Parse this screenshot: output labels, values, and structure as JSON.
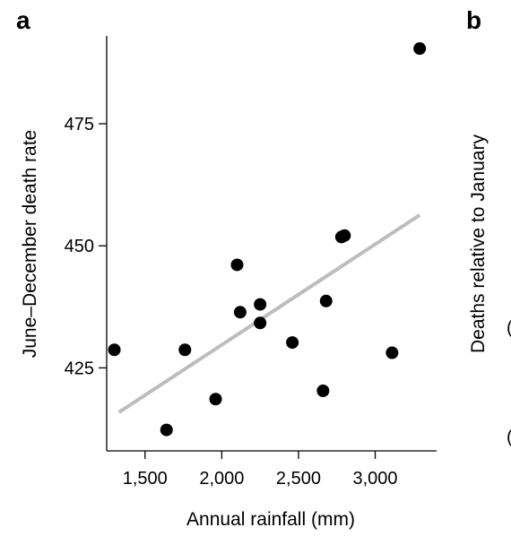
{
  "panels": {
    "a": "a",
    "b": "b"
  },
  "chart_data": [
    {
      "panel": "a",
      "type": "scatter",
      "xlabel": "Annual rainfall (mm)",
      "ylabel": "June–December death rate",
      "xlim": [
        1250,
        3400
      ],
      "ylim": [
        408,
        493
      ],
      "xticks": [
        1500,
        2000,
        2500,
        3000
      ],
      "xtick_labels": [
        "1,500",
        "2,000",
        "2,500",
        "3,000"
      ],
      "yticks": [
        425,
        450,
        475
      ],
      "ytick_labels": [
        "425",
        "450",
        "475"
      ],
      "points": [
        {
          "x": 1300,
          "y": 428.7
        },
        {
          "x": 1640,
          "y": 412.3
        },
        {
          "x": 1760,
          "y": 428.7
        },
        {
          "x": 1960,
          "y": 418.6
        },
        {
          "x": 2100,
          "y": 446.1
        },
        {
          "x": 2120,
          "y": 436.4
        },
        {
          "x": 2250,
          "y": 438.0
        },
        {
          "x": 2250,
          "y": 434.2
        },
        {
          "x": 2460,
          "y": 430.2
        },
        {
          "x": 2660,
          "y": 420.3
        },
        {
          "x": 2680,
          "y": 438.7
        },
        {
          "x": 2780,
          "y": 451.8
        },
        {
          "x": 2800,
          "y": 452.1
        },
        {
          "x": 3110,
          "y": 428.1
        },
        {
          "x": 3290,
          "y": 490.4
        }
      ],
      "trend_line": {
        "x": [
          1330,
          3290
        ],
        "y": [
          415.9,
          456.3
        ]
      },
      "colors": {
        "points": "#000000",
        "trend": "#bdbdbd",
        "axis": "#000000"
      }
    },
    {
      "panel": "b",
      "type": "scatter",
      "ylabel": "Deaths relative to January"
    }
  ]
}
